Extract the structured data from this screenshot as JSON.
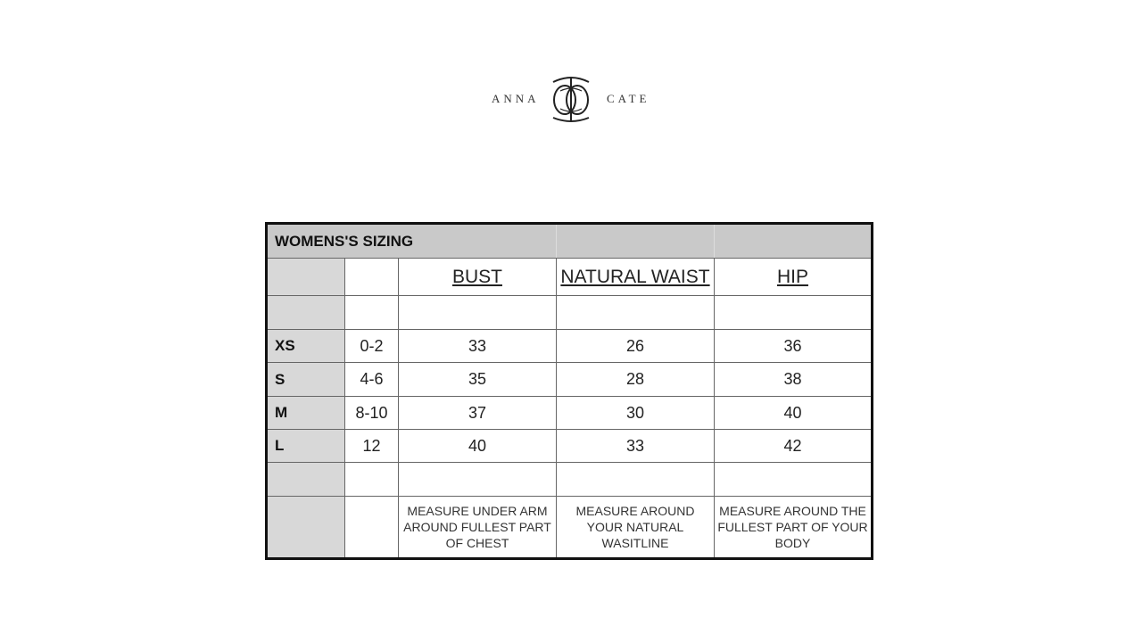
{
  "brand": {
    "left": "ANNA",
    "right": "CATE"
  },
  "table": {
    "title": "WOMENS'S SIZING",
    "headers": [
      "BUST",
      "NATURAL WAIST",
      "HIP"
    ],
    "rows": [
      {
        "size": "XS",
        "numeric": "0-2",
        "bust": "33",
        "waist": "26",
        "hip": "36"
      },
      {
        "size": "S",
        "numeric": "4-6",
        "bust": "35",
        "waist": "28",
        "hip": "38"
      },
      {
        "size": "M",
        "numeric": "8-10",
        "bust": "37",
        "waist": "30",
        "hip": "40"
      },
      {
        "size": "L",
        "numeric": "12",
        "bust": "40",
        "waist": "33",
        "hip": "42"
      }
    ],
    "notes": [
      "MEASURE UNDER ARM AROUND FULLEST PART OF CHEST",
      "MEASURE AROUND YOUR NATURAL WASITLINE",
      "MEASURE AROUND THE FULLEST PART OF YOUR BODY"
    ]
  }
}
